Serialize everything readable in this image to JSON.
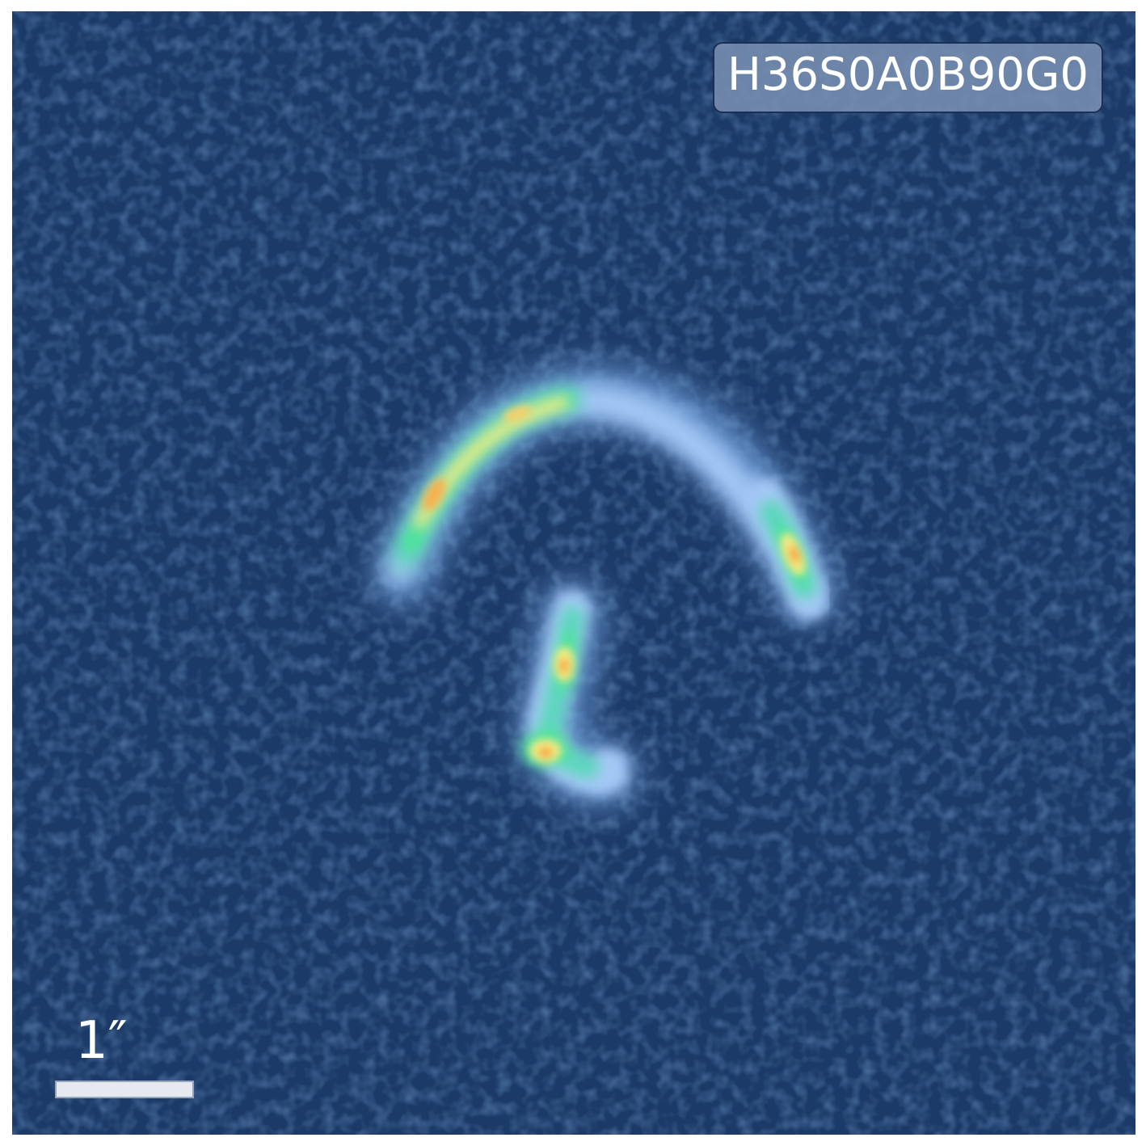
{
  "image_label": "H36S0A0B90G0",
  "scale_bar": {
    "label": "1″"
  },
  "colors": {
    "background": "#1c3a68",
    "glow": "#8fbaf2",
    "cyan": "#5fd6c0",
    "green": "#4ee39a",
    "yellow": "#f3ec82",
    "orange": "#f6a640",
    "label_box": "#788eb0"
  }
}
